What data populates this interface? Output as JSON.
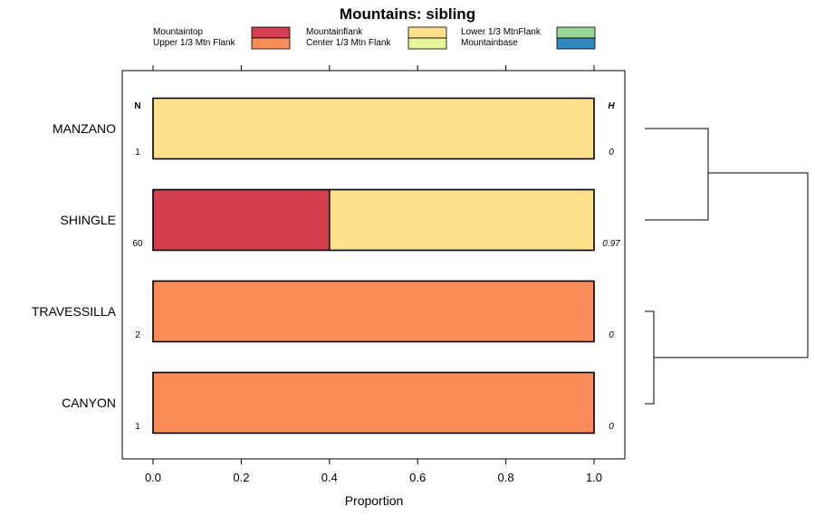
{
  "chart_data": {
    "type": "bar",
    "orientation": "horizontal",
    "stacked": true,
    "title": "Mountains: sibling",
    "xlabel": "Proportion",
    "xlim": [
      0,
      1
    ],
    "xticks": [
      "0.0",
      "0.2",
      "0.4",
      "0.6",
      "0.8",
      "1.0"
    ],
    "categories": [
      "MANZANO",
      "SHINGLE",
      "TRAVESSILLA",
      "CANYON"
    ],
    "series": [
      {
        "name": "Mountaintop",
        "color": "#d53e4f",
        "values": [
          0,
          0.4,
          0,
          0
        ]
      },
      {
        "name": "Upper 1/3 Mtn Flank",
        "color": "#fc8d59",
        "values": [
          0,
          0,
          1,
          1
        ]
      },
      {
        "name": "Mountainflank",
        "color": "#fee08b",
        "values": [
          1,
          0.6,
          0,
          0
        ]
      },
      {
        "name": "Center 1/3 Mtn Flank",
        "color": "#e6f598",
        "values": [
          0,
          0,
          0,
          0
        ]
      },
      {
        "name": "Lower 1/3 MtnFlank",
        "color": "#99d594",
        "values": [
          0,
          0,
          0,
          0
        ]
      },
      {
        "name": "Mountainbase",
        "color": "#3288bd",
        "values": [
          0,
          0,
          0,
          0
        ]
      }
    ],
    "n_header": "N",
    "h_header": "H",
    "n_values": [
      "1",
      "60",
      "2",
      "1"
    ],
    "h_values": [
      "0",
      "0.97",
      "0",
      "0"
    ],
    "legend_position": "top",
    "dendrogram": "right"
  }
}
